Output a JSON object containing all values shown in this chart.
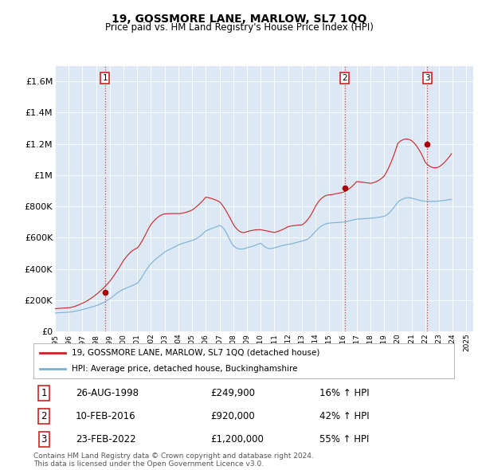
{
  "title": "19, GOSSMORE LANE, MARLOW, SL7 1QQ",
  "subtitle": "Price paid vs. HM Land Registry's House Price Index (HPI)",
  "ylim": [
    0,
    1700000
  ],
  "xlim_start": 1995.0,
  "xlim_end": 2025.5,
  "yticks": [
    0,
    200000,
    400000,
    600000,
    800000,
    1000000,
    1200000,
    1400000,
    1600000
  ],
  "ytick_labels": [
    "£0",
    "£200K",
    "£400K",
    "£600K",
    "£800K",
    "£1M",
    "£1.2M",
    "£1.4M",
    "£1.6M"
  ],
  "hpi_color": "#7aafd4",
  "price_color": "#cc2222",
  "sale_dot_color": "#aa0000",
  "background_color": "#ffffff",
  "chart_bg_color": "#dce9f5",
  "grid_color": "#ffffff",
  "sales": [
    {
      "num": 1,
      "year": 1998.65,
      "price": 249900,
      "label": "26-AUG-1998",
      "price_label": "£249,900",
      "hpi_label": "16% ↑ HPI"
    },
    {
      "num": 2,
      "year": 2016.12,
      "price": 920000,
      "label": "10-FEB-2016",
      "price_label": "£920,000",
      "hpi_label": "42% ↑ HPI"
    },
    {
      "num": 3,
      "year": 2022.15,
      "price": 1200000,
      "label": "23-FEB-2022",
      "price_label": "£1,200,000",
      "hpi_label": "55% ↑ HPI"
    }
  ],
  "legend_entries": [
    {
      "label": "19, GOSSMORE LANE, MARLOW, SL7 1QQ (detached house)",
      "color": "#cc2222"
    },
    {
      "label": "HPI: Average price, detached house, Buckinghamshire",
      "color": "#7aafd4"
    }
  ],
  "footer": "Contains HM Land Registry data © Crown copyright and database right 2024.\nThis data is licensed under the Open Government Licence v3.0.",
  "hpi_data_monthly": {
    "start_year": 1995.0,
    "step": 0.08333,
    "values": [
      118000,
      117500,
      118200,
      118800,
      119300,
      119700,
      120000,
      120400,
      120900,
      121300,
      121700,
      122100,
      122500,
      123200,
      124100,
      125200,
      126400,
      127700,
      129100,
      130600,
      132200,
      133900,
      135700,
      137600,
      139500,
      141400,
      143400,
      145400,
      147400,
      149400,
      151400,
      153400,
      155400,
      157500,
      159700,
      162000,
      164300,
      166900,
      169700,
      172700,
      175900,
      179300,
      183000,
      186900,
      190900,
      195100,
      199500,
      204000,
      208500,
      213800,
      219500,
      225500,
      231700,
      237700,
      243400,
      248700,
      253500,
      258000,
      262100,
      265900,
      269500,
      272900,
      276000,
      279100,
      282000,
      284900,
      287800,
      290800,
      294000,
      297300,
      300800,
      304400,
      308200,
      316000,
      325000,
      335200,
      346600,
      358800,
      371200,
      383300,
      394800,
      405500,
      415400,
      424500,
      433000,
      440800,
      448100,
      454900,
      461400,
      467500,
      473400,
      479200,
      484900,
      490600,
      496400,
      502200,
      507800,
      511900,
      515700,
      519300,
      522800,
      526300,
      529800,
      533400,
      537100,
      540900,
      544900,
      549000,
      553200,
      556200,
      558900,
      561400,
      563800,
      566100,
      568300,
      570500,
      572600,
      574800,
      577000,
      579200,
      581400,
      584200,
      587400,
      591000,
      595000,
      599500,
      604400,
      609800,
      615600,
      621900,
      628700,
      635900,
      643500,
      646600,
      649500,
      652300,
      655000,
      657600,
      660300,
      663000,
      665800,
      668700,
      671700,
      674800,
      678000,
      675000,
      670000,
      663000,
      654000,
      643000,
      630000,
      615000,
      600000,
      586000,
      573000,
      561000,
      551000,
      543000,
      537000,
      533000,
      530000,
      528000,
      527000,
      527000,
      527000,
      528000,
      530000,
      532000,
      535000,
      537000,
      539000,
      541000,
      543000,
      545000,
      547000,
      550000,
      553000,
      556000,
      559000,
      562000,
      565000,
      558000,
      551000,
      545000,
      540000,
      536000,
      533000,
      531000,
      530000,
      530000,
      531000,
      533000,
      535000,
      537000,
      539000,
      541000,
      543000,
      545000,
      547000,
      549000,
      551000,
      553000,
      554000,
      556000,
      557000,
      558000,
      559000,
      560000,
      562000,
      564000,
      566000,
      568000,
      570000,
      572000,
      574000,
      576000,
      578000,
      580000,
      582000,
      584000,
      586000,
      590000,
      595000,
      601000,
      608000,
      616000,
      624000,
      632000,
      640000,
      648000,
      655000,
      662000,
      668000,
      673000,
      678000,
      682000,
      685000,
      688000,
      690000,
      692000,
      693000,
      693500,
      694000,
      694500,
      695000,
      695500,
      696000,
      696500,
      697000,
      697500,
      698000,
      698500,
      699000,
      700000,
      701000,
      702500,
      704000,
      706000,
      708000,
      710000,
      712000,
      714000,
      715500,
      717000,
      718000,
      718500,
      719000,
      719500,
      720000,
      720500,
      721000,
      721500,
      722000,
      722500,
      723000,
      723500,
      724000,
      724500,
      725000,
      726000,
      727000,
      728000,
      729000,
      730000,
      731000,
      732000,
      733500,
      735000,
      737000,
      740000,
      744000,
      749000,
      755000,
      762000,
      770000,
      779000,
      788000,
      797000,
      807000,
      817000,
      827000,
      833000,
      838000,
      842000,
      846000,
      849000,
      852000,
      854000,
      855000,
      855000,
      855000,
      854000,
      853000,
      851000,
      849000,
      847000,
      845000,
      843000,
      841000,
      839000,
      837000,
      836000,
      835000,
      834000,
      833000,
      832500,
      832000,
      832000,
      832000,
      832000,
      832000,
      832000,
      832000,
      832000,
      832500,
      833000,
      834000,
      835000,
      836000,
      837000,
      838000,
      839000,
      840000,
      841000,
      842000,
      843000,
      844000,
      845000
    ]
  },
  "price_data_monthly": {
    "start_year": 1995.0,
    "step": 0.08333,
    "values": [
      145000,
      145500,
      146000,
      146500,
      147000,
      147500,
      148000,
      148500,
      149000,
      149500,
      150000,
      150500,
      151000,
      152000,
      153500,
      155000,
      157000,
      159200,
      161600,
      164200,
      167000,
      170000,
      173200,
      176500,
      179900,
      183400,
      187100,
      191000,
      195100,
      199400,
      203900,
      208600,
      213500,
      218600,
      223900,
      229400,
      235000,
      241000,
      247200,
      253600,
      260200,
      267000,
      274000,
      281200,
      288600,
      296200,
      304000,
      312000,
      320200,
      330000,
      340200,
      350600,
      361200,
      372000,
      383000,
      394200,
      405600,
      417200,
      429000,
      441000,
      453200,
      463500,
      473200,
      482200,
      490500,
      498200,
      505200,
      511500,
      517200,
      522200,
      526500,
      530200,
      533200,
      542000,
      552000,
      563200,
      575200,
      588200,
      602000,
      616500,
      631200,
      645500,
      659200,
      672000,
      684000,
      693500,
      702200,
      710200,
      717500,
      724200,
      730200,
      735500,
      740200,
      744200,
      747500,
      750200,
      752200,
      752800,
      753200,
      753500,
      753700,
      753900,
      754000,
      754000,
      754000,
      754000,
      753900,
      753700,
      753500,
      754000,
      754800,
      755900,
      757200,
      758800,
      760600,
      762700,
      765000,
      767600,
      770400,
      773500,
      776800,
      782000,
      787500,
      793200,
      799200,
      805500,
      812200,
      819200,
      826500,
      834200,
      842200,
      850500,
      859200,
      858000,
      856500,
      854800,
      852800,
      850600,
      848200,
      845600,
      842800,
      839800,
      836600,
      833200,
      829600,
      821500,
      812500,
      802600,
      791900,
      780400,
      768200,
      755400,
      742100,
      728400,
      714500,
      700500,
      686500,
      675200,
      665200,
      656500,
      649200,
      643200,
      638500,
      635200,
      633200,
      632500,
      633200,
      635200,
      638500,
      640500,
      642300,
      644000,
      645500,
      647000,
      648200,
      649200,
      650000,
      650500,
      650800,
      651000,
      651000,
      649500,
      648000,
      646500,
      645000,
      643500,
      642000,
      640500,
      639000,
      637500,
      636000,
      634500,
      633000,
      635000,
      637200,
      639600,
      642200,
      645000,
      648000,
      651200,
      654600,
      658200,
      662000,
      666000,
      670200,
      672000,
      673500,
      674800,
      676000,
      677000,
      678000,
      678800,
      679500,
      680200,
      680800,
      681200,
      681500,
      686000,
      691500,
      698000,
      705500,
      714000,
      723500,
      734000,
      745500,
      758000,
      771500,
      786000,
      801500,
      813000,
      823500,
      833000,
      841500,
      849000,
      855500,
      861000,
      865500,
      869000,
      871500,
      873000,
      873500,
      874000,
      875000,
      876500,
      878000,
      879500,
      881000,
      882500,
      884000,
      885500,
      887000,
      888500,
      890000,
      893000,
      896500,
      900500,
      905000,
      910000,
      915500,
      921500,
      928000,
      935000,
      942500,
      950500,
      959000,
      958500,
      957800,
      957000,
      956000,
      955000,
      954000,
      953000,
      952000,
      951000,
      950000,
      949000,
      948000,
      949000,
      950500,
      952500,
      955000,
      958000,
      961500,
      965500,
      970000,
      975000,
      980500,
      986500,
      993000,
      1005000,
      1018000,
      1032000,
      1047000,
      1063000,
      1080000,
      1098000,
      1117000,
      1137000,
      1158000,
      1180000,
      1203000,
      1210000,
      1216000,
      1221000,
      1225000,
      1228000,
      1230000,
      1231000,
      1231000,
      1230000,
      1228000,
      1225000,
      1221000,
      1215000,
      1208000,
      1200000,
      1191000,
      1181000,
      1170000,
      1158000,
      1145000,
      1131000,
      1116000,
      1100000,
      1083000,
      1075000,
      1068000,
      1062000,
      1057000,
      1053000,
      1050000,
      1048000,
      1047000,
      1047000,
      1048000,
      1050000,
      1053000,
      1058000,
      1063000,
      1069000,
      1076000,
      1083000,
      1091000,
      1099000,
      1108000,
      1117000,
      1127000,
      1137000
    ]
  }
}
